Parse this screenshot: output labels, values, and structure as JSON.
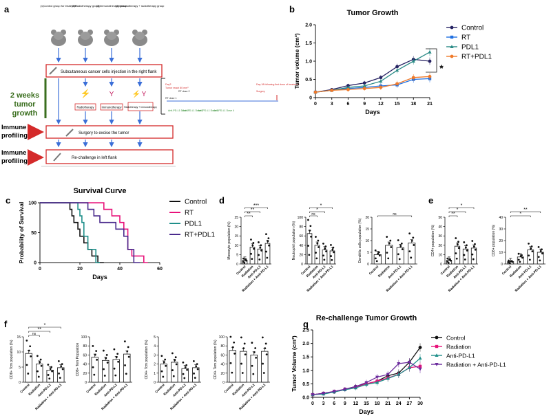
{
  "panels": {
    "a": {
      "label": "a",
      "groups": [
        "(1)Control group for treatment",
        "(2)Radiotherapy group",
        "(3)Immunotherapy group",
        "(4)Immunotherapy + radiotherapy group"
      ],
      "injection_text": "Subcutaneous cancer cells injection in the right flank",
      "two_weeks": "2 weeks",
      "tumor": "tumor",
      "growth": "growth",
      "treatments": [
        "Radiotherapy",
        "Immunotherapy",
        "Radiotherapy + Immunotherapy"
      ],
      "immune": "Immune",
      "profiling": "profiling",
      "surgery_text": "Surgery to excise the tumor",
      "rechallenge_text": "Re-challenge in left flank",
      "timeline": {
        "day7": "Day7:",
        "tumor_reach": "Tumor reach 80 mm³",
        "rt_dose1": "RT dose 1",
        "rt_dose2": "RT dose 2",
        "day18": "Day 18 following first dose of treatment:",
        "surgery": "Surgery",
        "doses": [
          "Anti-PD-L1 Dose 1",
          "Anti-PD-L1 Dose 2",
          "Anti-PD-L1 Dose 3",
          "Anti-PD-L1 Dose 4"
        ]
      }
    },
    "b": {
      "label": "b"
    },
    "c": {
      "label": "c"
    },
    "d": {
      "label": "d"
    },
    "e": {
      "label": "e"
    },
    "f": {
      "label": "f"
    },
    "g": {
      "label": "g"
    }
  },
  "chart_data": [
    {
      "id": "tumor-growth",
      "type": "line",
      "title": "Tumor Growth",
      "xlabel": "Days",
      "ylabel": "Tumor volume (cm³)",
      "x": [
        0,
        3,
        6,
        9,
        12,
        15,
        18,
        21
      ],
      "xlim": [
        0,
        21
      ],
      "ylim": [
        0,
        2.0
      ],
      "yticks": [
        "0",
        "0.5",
        "1.0",
        "1.5",
        "2.0"
      ],
      "colors": [
        "#262262",
        "#1f6fe0",
        "#2a8a86",
        "#f07a2a"
      ],
      "series": [
        {
          "name": "Control",
          "values": [
            0.15,
            0.22,
            0.33,
            0.4,
            0.55,
            0.85,
            1.05,
            1.0
          ]
        },
        {
          "name": "RT",
          "values": [
            0.15,
            0.2,
            0.25,
            0.28,
            0.32,
            0.35,
            0.5,
            0.52
          ]
        },
        {
          "name": "PDL1",
          "values": [
            0.15,
            0.2,
            0.28,
            0.32,
            0.45,
            0.75,
            1.0,
            1.25
          ]
        },
        {
          "name": "RT+PDL1",
          "values": [
            0.15,
            0.2,
            0.22,
            0.25,
            0.28,
            0.38,
            0.55,
            0.58
          ]
        }
      ],
      "annotations": [
        "*"
      ]
    },
    {
      "id": "survival",
      "type": "line",
      "title": "Survival Curve",
      "xlabel": "Days",
      "ylabel": "Probability of Survival",
      "xlim": [
        0,
        60
      ],
      "ylim": [
        0,
        100
      ],
      "xticks": [
        "0",
        "20",
        "40",
        "60"
      ],
      "yticks": [
        "0",
        "50",
        "100"
      ],
      "colors": [
        "#111111",
        "#e8127a",
        "#1f8f8a",
        "#4a2a8c"
      ],
      "series": [
        {
          "name": "Control",
          "points": [
            [
              0,
              100
            ],
            [
              15,
              100
            ],
            [
              15,
              89
            ],
            [
              16,
              89
            ],
            [
              16,
              78
            ],
            [
              17,
              78
            ],
            [
              17,
              67
            ],
            [
              19,
              67
            ],
            [
              19,
              56
            ],
            [
              20,
              56
            ],
            [
              20,
              44
            ],
            [
              22,
              44
            ],
            [
              22,
              33
            ],
            [
              24,
              33
            ],
            [
              24,
              22
            ],
            [
              26,
              22
            ],
            [
              26,
              11
            ],
            [
              29,
              11
            ],
            [
              29,
              0
            ],
            [
              32,
              0
            ]
          ]
        },
        {
          "name": "RT",
          "points": [
            [
              0,
              100
            ],
            [
              32,
              100
            ],
            [
              32,
              89
            ],
            [
              36,
              89
            ],
            [
              36,
              78
            ],
            [
              40,
              78
            ],
            [
              40,
              67
            ],
            [
              42,
              67
            ],
            [
              42,
              56
            ],
            [
              44,
              56
            ],
            [
              44,
              22
            ],
            [
              46,
              22
            ],
            [
              46,
              11
            ],
            [
              52,
              11
            ],
            [
              52,
              0
            ],
            [
              54,
              0
            ]
          ]
        },
        {
          "name": "PDL1",
          "points": [
            [
              0,
              100
            ],
            [
              19,
              100
            ],
            [
              19,
              89
            ],
            [
              20,
              89
            ],
            [
              20,
              78
            ],
            [
              21,
              78
            ],
            [
              21,
              67
            ],
            [
              22,
              67
            ],
            [
              22,
              44
            ],
            [
              24,
              44
            ],
            [
              24,
              22
            ],
            [
              28,
              22
            ],
            [
              28,
              0
            ],
            [
              30,
              0
            ]
          ]
        },
        {
          "name": "RT+PDL1",
          "points": [
            [
              0,
              100
            ],
            [
              24,
              100
            ],
            [
              24,
              89
            ],
            [
              27,
              89
            ],
            [
              27,
              78
            ],
            [
              30,
              78
            ],
            [
              30,
              67
            ],
            [
              38,
              67
            ],
            [
              38,
              56
            ],
            [
              42,
              56
            ],
            [
              42,
              44
            ],
            [
              44,
              44
            ],
            [
              44,
              22
            ],
            [
              47,
              22
            ],
            [
              47,
              0
            ],
            [
              50,
              0
            ]
          ]
        }
      ]
    },
    {
      "id": "monocyte",
      "type": "bar",
      "ylabel": "Monocyte population (%)",
      "categories": [
        "Control",
        "Radiation",
        "Anti-PD-L1",
        "Radiation + Anti-PD-L1"
      ],
      "values": [
        2,
        9,
        8,
        11
      ],
      "ylim": [
        0,
        25
      ],
      "yticks": [
        "0",
        "5",
        "10",
        "15",
        "20",
        "25"
      ],
      "sig": [
        {
          "from": 0,
          "to": 1,
          "label": "**"
        },
        {
          "from": 0,
          "to": 2,
          "label": "**"
        },
        {
          "from": 0,
          "to": 3,
          "label": "***"
        }
      ]
    },
    {
      "id": "neutrophil",
      "type": "bar",
      "ylabel": "Neutrophil population (%)",
      "categories": [
        "Control",
        "Radiation",
        "Anti-PD-L1",
        "Radiation + Anti-PD-L1"
      ],
      "values": [
        65,
        40,
        30,
        28
      ],
      "ylim": [
        0,
        100
      ],
      "yticks": [
        "0",
        "20",
        "40",
        "60",
        "80",
        "100"
      ],
      "sig": [
        {
          "from": 0,
          "to": 1,
          "label": "ns"
        },
        {
          "from": 0,
          "to": 2,
          "label": "*"
        },
        {
          "from": 0,
          "to": 3,
          "label": "*"
        }
      ]
    },
    {
      "id": "dendritic",
      "type": "bar",
      "ylabel": "Dendritic cells population (%)",
      "categories": [
        "Control",
        "Radiation",
        "Anti-PD-L1",
        "Radiation + Anti-PD-L1"
      ],
      "values": [
        4,
        8,
        7,
        9
      ],
      "ylim": [
        0,
        20
      ],
      "yticks": [
        "0",
        "5",
        "10",
        "15",
        "20"
      ],
      "sig": [
        {
          "from": 0,
          "to": 3,
          "label": "ns"
        }
      ]
    },
    {
      "id": "cd4",
      "type": "bar",
      "ylabel": "CD4+ population (%)",
      "categories": [
        "Control",
        "Radiation",
        "Anti-PD-L1",
        "Radiation + Anti-PD-L1"
      ],
      "values": [
        4,
        19,
        16,
        17
      ],
      "ylim": [
        0,
        50
      ],
      "yticks": [
        "0",
        "10",
        "20",
        "30",
        "40",
        "50"
      ],
      "sig": [
        {
          "from": 0,
          "to": 1,
          "label": "**"
        },
        {
          "from": 0,
          "to": 2,
          "label": "*"
        },
        {
          "from": 0,
          "to": 3,
          "label": "*"
        }
      ]
    },
    {
      "id": "cd8",
      "type": "bar",
      "ylabel": "CD8+ population (%)",
      "categories": [
        "Control",
        "Radiation",
        "Anti-PD-L1",
        "Radiation + Anti-PD-L1"
      ],
      "values": [
        2,
        6,
        12,
        10
      ],
      "ylim": [
        0,
        40
      ],
      "yticks": [
        "0",
        "10",
        "20",
        "30",
        "40"
      ],
      "sig": [
        {
          "from": 0,
          "to": 2,
          "label": "*"
        },
        {
          "from": 0,
          "to": 3,
          "label": "**"
        }
      ]
    },
    {
      "id": "cd8-tcm",
      "type": "bar",
      "ylabel": "CD8+ Tcm population (%)",
      "categories": [
        "Control",
        "Radiation",
        "Anti-PD-L1",
        "Radiation + Anti-PD-L1"
      ],
      "values": [
        9.5,
        6,
        4,
        4.8
      ],
      "ylim": [
        0,
        15
      ],
      "yticks": [
        "0",
        "5",
        "10",
        "15"
      ],
      "sig": [
        {
          "from": 0,
          "to": 1,
          "label": "ns"
        },
        {
          "from": 0,
          "to": 2,
          "label": "**"
        },
        {
          "from": 0,
          "to": 3,
          "label": "*"
        }
      ]
    },
    {
      "id": "cd8-tem",
      "type": "bar",
      "ylabel": "CD8+ Tem Population",
      "categories": [
        "Control",
        "Radiation",
        "Anti-PD-L1",
        "Radiation + Anti-PD-L1"
      ],
      "values": [
        55,
        48,
        50,
        62
      ],
      "ylim": [
        0,
        100
      ],
      "yticks": [
        "0",
        "20",
        "40",
        "60",
        "80",
        "100"
      ],
      "sig": []
    },
    {
      "id": "cd4-tcm",
      "type": "bar",
      "ylabel": "CD4+ Tcm population (%)",
      "categories": [
        "Control",
        "Radiation",
        "Anti-PD-L1",
        "Radiation + Anti-PD-L1"
      ],
      "values": [
        2.0,
        2.2,
        1.5,
        1.6
      ],
      "ylim": [
        0,
        5
      ],
      "yticks": [
        "0",
        "1",
        "2",
        "3",
        "4",
        "5"
      ],
      "sig": []
    },
    {
      "id": "cd4-tem",
      "type": "bar",
      "ylabel": "CD4+ Tem population (%)",
      "categories": [
        "Control",
        "Radiation",
        "Anti-PD-L1",
        "Radiation + Anti-PD-L1"
      ],
      "values": [
        70,
        68,
        60,
        68
      ],
      "ylim": [
        0,
        100
      ],
      "yticks": [
        "0",
        "20",
        "40",
        "60",
        "80",
        "100"
      ],
      "sig": []
    },
    {
      "id": "rechallenge",
      "type": "line",
      "title": "Re-challenge Tumor Growth",
      "xlabel": "Days",
      "ylabel": "Tumor Volume (cm³)",
      "x": [
        0,
        3,
        6,
        9,
        12,
        15,
        18,
        21,
        24,
        27,
        30
      ],
      "xlim": [
        0,
        30
      ],
      "ylim": [
        0,
        2.5
      ],
      "yticks": [
        "0.0",
        "0.5",
        "1.0",
        "1.5",
        "2.0",
        "2.5"
      ],
      "colors": [
        "#111111",
        "#e8127a",
        "#1f8f8a",
        "#6a2a9c"
      ],
      "series": [
        {
          "name": "Control",
          "values": [
            0.1,
            0.15,
            0.2,
            0.3,
            0.4,
            0.5,
            0.6,
            0.8,
            0.9,
            1.3,
            1.85
          ]
        },
        {
          "name": "Radiation",
          "values": [
            0.1,
            0.15,
            0.22,
            0.3,
            0.38,
            0.5,
            0.6,
            0.72,
            0.85,
            1.1,
            1.15
          ]
        },
        {
          "name": "Anti-PD-L1",
          "values": [
            0.1,
            0.12,
            0.2,
            0.28,
            0.35,
            0.48,
            0.55,
            0.7,
            0.85,
            1.1,
            1.45
          ]
        },
        {
          "name": "Radiation + Anti-PD-L1",
          "values": [
            0.1,
            0.15,
            0.22,
            0.3,
            0.4,
            0.55,
            0.75,
            0.85,
            1.25,
            1.3,
            1.05
          ]
        }
      ]
    }
  ]
}
